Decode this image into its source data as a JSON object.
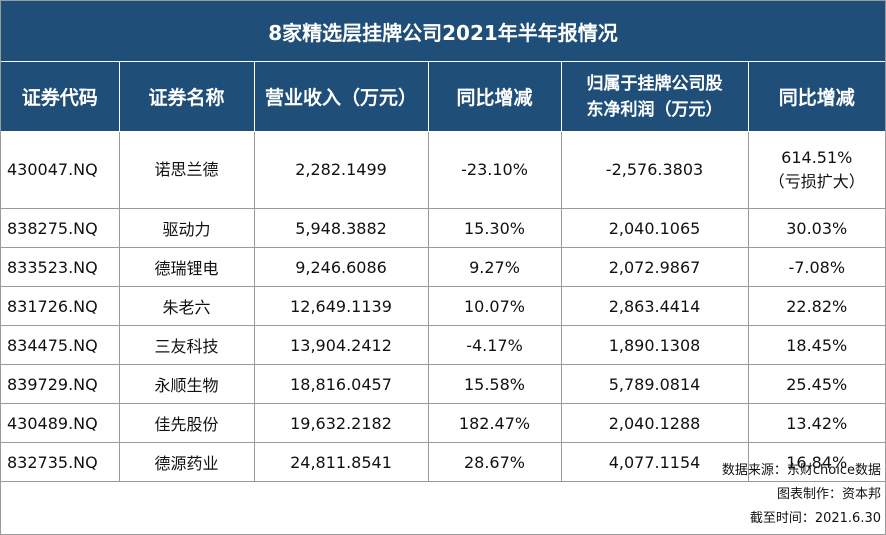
{
  "title": "8家精选层挂牌公司2021年半年报情况",
  "headers": {
    "code": "证券代码",
    "name": "证券名称",
    "revenue": "营业收入（万元）",
    "revenue_yoy": "同比增减",
    "profit_line1": "归属于挂牌公司股",
    "profit_line2": "东净利润（万元）",
    "profit_yoy": "同比增减"
  },
  "rows": [
    {
      "code": "430047.NQ",
      "name": "诺思兰德",
      "revenue": "2,282.1499",
      "revenue_yoy": "-23.10%",
      "profit": "-2,576.3803",
      "profit_yoy": "614.51%",
      "profit_note": "（亏损扩大）"
    },
    {
      "code": "838275.NQ",
      "name": "驱动力",
      "revenue": "5,948.3882",
      "revenue_yoy": "15.30%",
      "profit": "2,040.1065",
      "profit_yoy": "30.03%"
    },
    {
      "code": "833523.NQ",
      "name": "德瑞锂电",
      "revenue": "9,246.6086",
      "revenue_yoy": "9.27%",
      "profit": "2,072.9867",
      "profit_yoy": "-7.08%"
    },
    {
      "code": "831726.NQ",
      "name": "朱老六",
      "revenue": "12,649.1139",
      "revenue_yoy": "10.07%",
      "profit": "2,863.4414",
      "profit_yoy": "22.82%"
    },
    {
      "code": "834475.NQ",
      "name": "三友科技",
      "revenue": "13,904.2412",
      "revenue_yoy": "-4.17%",
      "profit": "1,890.1308",
      "profit_yoy": "18.45%"
    },
    {
      "code": "839729.NQ",
      "name": "永顺生物",
      "revenue": "18,816.0457",
      "revenue_yoy": "15.58%",
      "profit": "5,789.0814",
      "profit_yoy": "25.45%"
    },
    {
      "code": "430489.NQ",
      "name": "佳先股份",
      "revenue": "19,632.2182",
      "revenue_yoy": "182.47%",
      "profit": "2,040.1288",
      "profit_yoy": "13.42%"
    },
    {
      "code": "832735.NQ",
      "name": "德源药业",
      "revenue": "24,811.8541",
      "revenue_yoy": "28.67%",
      "profit": "4,077.1154",
      "profit_yoy": "16.84%"
    }
  ],
  "footer": {
    "source": "数据来源：东财choice数据",
    "maker": "图表制作：资本邦",
    "date": "截至时间：2021.6.30"
  }
}
